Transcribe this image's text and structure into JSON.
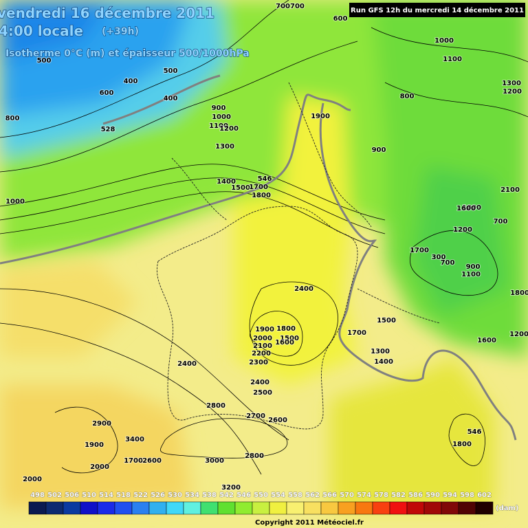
{
  "header": {
    "date": "vendredi 16 décembre 2011",
    "time": "4:00 locale",
    "lead": "(+39h)",
    "subtitle": "Isotherme 0°C (m) et épaisseur 500/1000hPa",
    "run": "Run GFS 12h du mercredi 14 décembre 2011"
  },
  "contours": [
    "400",
    "500",
    "600",
    "500",
    "400",
    "800",
    "528",
    "700700",
    "600",
    "1000",
    "1100",
    "800",
    "900",
    "1300",
    "1200",
    "1000",
    "900",
    "1000",
    "1100",
    "1200",
    "1300",
    "1400",
    "1500",
    "1700",
    "1800",
    "546",
    "1900",
    "1000",
    "1200",
    "2100",
    "1600",
    "700",
    "1700",
    "300",
    "700",
    "900",
    "1100",
    "1800",
    "2400",
    "1900",
    "1800",
    "1500",
    "1600",
    "2000",
    "2100",
    "2200",
    "2300",
    "1700",
    "1500",
    "1300",
    "1400",
    "1600",
    "1200",
    "2400",
    "2400",
    "2500",
    "2800",
    "2700",
    "2600",
    "2900",
    "1900",
    "3400",
    "2800",
    "3000",
    "2000",
    "2000",
    "1700",
    "2600",
    "3200",
    "1800",
    "546"
  ],
  "legend": {
    "ticks": [
      498,
      502,
      506,
      510,
      514,
      518,
      522,
      526,
      530,
      534,
      538,
      542,
      546,
      550,
      554,
      558,
      562,
      566,
      570,
      574,
      578,
      582,
      586,
      590,
      594,
      598,
      602
    ],
    "colors": [
      "#0a1a50",
      "#0c2a70",
      "#0a3aa0",
      "#1010c8",
      "#1a2ae8",
      "#2050f0",
      "#2a80f0",
      "#30b0f0",
      "#40d8f8",
      "#60f0e0",
      "#40e070",
      "#60e030",
      "#90ec30",
      "#c8f040",
      "#f0f040",
      "#f8f070",
      "#f8e060",
      "#f8c840",
      "#f8a020",
      "#f87810",
      "#f84010",
      "#f01010",
      "#c00808",
      "#a00808",
      "#800808",
      "#500404",
      "#200000"
    ],
    "unit": "(dam)"
  },
  "footer": {
    "copyright": "Copyright 2011 Météociel.fr"
  }
}
